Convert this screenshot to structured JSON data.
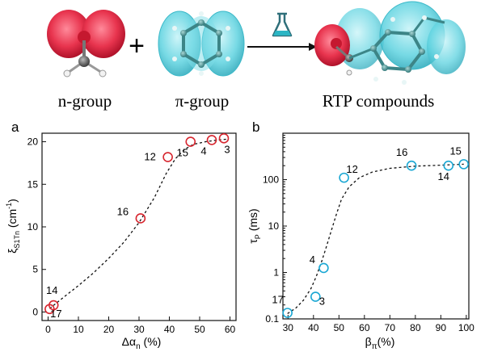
{
  "scheme": {
    "labels": [
      "n-group",
      "π-group",
      "RTP compounds"
    ],
    "plus": "+",
    "orbital_colors": {
      "n": "#e8344e",
      "pi": "#5fd3e0"
    }
  },
  "chart_data": [
    {
      "type": "scatter",
      "panel_label": "a",
      "xlabel": "Δα",
      "xlabel_sub": "n",
      "xlabel_tail": " (%)",
      "ylabel": "ξ",
      "ylabel_sub": "S1Tn",
      "ylabel_tail": " (cm",
      "ylabel_sup": "-1",
      "ylabel_close": ")",
      "xlim": [
        -2,
        62
      ],
      "ylim": [
        -1,
        21
      ],
      "xticks": [
        0,
        10,
        20,
        30,
        40,
        50,
        60
      ],
      "xtick_labels": [
        "0",
        "10",
        "20",
        "30",
        "40",
        "50",
        "60"
      ],
      "yticks": [
        0,
        5,
        10,
        15,
        20
      ],
      "ytick_labels": [
        "0",
        "5",
        "10",
        "15",
        "20"
      ],
      "yscale": "linear",
      "marker_color": "#d7262f",
      "points": [
        {
          "label": "17",
          "x": 0.5,
          "y": 0.35
        },
        {
          "label": "14",
          "x": 1.8,
          "y": 0.8
        },
        {
          "label": "16",
          "x": 30.5,
          "y": 11.0
        },
        {
          "label": "12",
          "x": 39.5,
          "y": 18.2
        },
        {
          "label": "15",
          "x": 47.0,
          "y": 20.0
        },
        {
          "label": "4",
          "x": 54.0,
          "y": 20.2
        },
        {
          "label": "3",
          "x": 58.0,
          "y": 20.4
        }
      ],
      "fit_curve": [
        [
          0.5,
          0.4
        ],
        [
          5,
          1.7
        ],
        [
          10,
          3.1
        ],
        [
          15,
          4.6
        ],
        [
          20,
          6.3
        ],
        [
          25,
          8.2
        ],
        [
          30,
          10.5
        ],
        [
          35,
          13.4
        ],
        [
          39,
          16.3
        ],
        [
          42,
          18.0
        ],
        [
          45,
          19.1
        ],
        [
          48,
          19.7
        ],
        [
          52,
          20.0
        ],
        [
          56,
          20.2
        ],
        [
          59,
          20.3
        ]
      ]
    },
    {
      "type": "scatter",
      "panel_label": "b",
      "xlabel": "β",
      "xlabel_sub": "π",
      "xlabel_tail": "(%)",
      "ylabel": "τ",
      "ylabel_sub": "P",
      "ylabel_tail": " (ms)",
      "xlim": [
        28,
        101
      ],
      "ylim": [
        0.1,
        1000
      ],
      "xticks": [
        30,
        40,
        50,
        60,
        70,
        80,
        90,
        100
      ],
      "xtick_labels": [
        "30",
        "40",
        "50",
        "60",
        "70",
        "80",
        "90",
        "100"
      ],
      "yticks": [
        0.1,
        1,
        10,
        100
      ],
      "ytick_labels": [
        "0.1",
        "1",
        "10",
        "100"
      ],
      "yscale": "log",
      "marker_color": "#1aa7d3",
      "points": [
        {
          "label": "17",
          "x": 29.8,
          "y": 0.135
        },
        {
          "label": "3",
          "x": 40.8,
          "y": 0.3
        },
        {
          "label": "4",
          "x": 44.0,
          "y": 1.25
        },
        {
          "label": "12",
          "x": 52.0,
          "y": 110
        },
        {
          "label": "16",
          "x": 78.5,
          "y": 200
        },
        {
          "label": "14",
          "x": 93.0,
          "y": 200
        },
        {
          "label": "15",
          "x": 99.0,
          "y": 215
        }
      ],
      "fit_curve": [
        [
          29.8,
          0.13
        ],
        [
          33,
          0.17
        ],
        [
          36,
          0.25
        ],
        [
          39,
          0.45
        ],
        [
          41,
          0.8
        ],
        [
          43,
          1.6
        ],
        [
          45,
          3.5
        ],
        [
          47,
          8
        ],
        [
          49,
          18
        ],
        [
          51,
          38
        ],
        [
          54,
          70
        ],
        [
          58,
          110
        ],
        [
          63,
          145
        ],
        [
          70,
          175
        ],
        [
          80,
          195
        ],
        [
          90,
          205
        ],
        [
          99,
          215
        ]
      ]
    }
  ]
}
